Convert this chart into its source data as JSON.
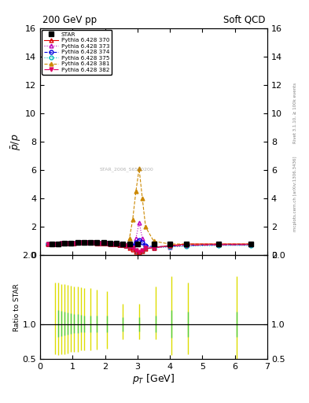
{
  "title_left": "200 GeV pp",
  "title_right": "Soft QCD",
  "ylabel_main": "$\\bar{p}/p$",
  "ylabel_ratio": "Ratio to STAR",
  "xlabel": "$p_T$ [GeV]",
  "right_label_top": "Rivet 3.1.10, ≥ 100k events",
  "right_label_bottom": "mcplots.cern.ch [arXiv:1306.3436]",
  "watermark": "STAR_2006_S6500200",
  "ylim_main": [
    0,
    16
  ],
  "ylim_ratio": [
    0.5,
    2
  ],
  "xlim": [
    0,
    7
  ],
  "star_x": [
    0.35,
    0.55,
    0.75,
    0.95,
    1.15,
    1.35,
    1.55,
    1.75,
    1.95,
    2.15,
    2.35,
    2.55,
    2.75,
    3.0,
    3.5,
    4.0,
    4.5,
    5.5,
    6.5
  ],
  "star_y": [
    0.78,
    0.8,
    0.84,
    0.87,
    0.89,
    0.91,
    0.92,
    0.91,
    0.9,
    0.88,
    0.86,
    0.83,
    0.8,
    0.8,
    0.8,
    0.8,
    0.8,
    0.82,
    0.82
  ],
  "pythia_x": [
    0.25,
    0.35,
    0.45,
    0.55,
    0.65,
    0.75,
    0.85,
    0.95,
    1.05,
    1.15,
    1.25,
    1.35,
    1.45,
    1.55,
    1.65,
    1.75,
    1.85,
    1.95,
    2.05,
    2.15,
    2.25,
    2.35,
    2.45,
    2.55,
    2.65,
    2.75,
    2.85,
    2.95,
    3.05,
    3.15,
    3.25,
    3.5,
    4.0,
    4.5,
    5.5,
    6.5
  ],
  "py370_y": [
    0.79,
    0.8,
    0.81,
    0.82,
    0.84,
    0.85,
    0.86,
    0.87,
    0.88,
    0.89,
    0.89,
    0.9,
    0.9,
    0.9,
    0.89,
    0.88,
    0.87,
    0.86,
    0.84,
    0.82,
    0.8,
    0.78,
    0.75,
    0.72,
    0.68,
    0.55,
    0.4,
    0.25,
    0.18,
    0.3,
    0.45,
    0.55,
    0.7,
    0.8,
    0.8,
    0.8
  ],
  "py373_y": [
    0.79,
    0.8,
    0.81,
    0.82,
    0.84,
    0.85,
    0.86,
    0.87,
    0.88,
    0.89,
    0.89,
    0.9,
    0.9,
    0.9,
    0.89,
    0.88,
    0.87,
    0.86,
    0.84,
    0.82,
    0.8,
    0.78,
    0.75,
    0.72,
    0.68,
    0.65,
    0.7,
    1.2,
    2.3,
    1.2,
    0.65,
    0.55,
    0.6,
    0.7,
    0.75,
    0.75
  ],
  "py374_y": [
    0.79,
    0.8,
    0.81,
    0.82,
    0.84,
    0.85,
    0.86,
    0.87,
    0.88,
    0.89,
    0.89,
    0.9,
    0.9,
    0.9,
    0.89,
    0.88,
    0.87,
    0.86,
    0.84,
    0.82,
    0.8,
    0.78,
    0.75,
    0.72,
    0.68,
    0.65,
    0.7,
    0.9,
    1.1,
    0.9,
    0.7,
    0.6,
    0.65,
    0.7,
    0.75,
    0.75
  ],
  "py375_y": [
    0.79,
    0.8,
    0.81,
    0.82,
    0.84,
    0.85,
    0.86,
    0.87,
    0.88,
    0.89,
    0.89,
    0.9,
    0.9,
    0.9,
    0.89,
    0.88,
    0.87,
    0.86,
    0.84,
    0.82,
    0.8,
    0.78,
    0.75,
    0.72,
    0.68,
    0.6,
    0.5,
    0.3,
    0.2,
    0.3,
    0.5,
    0.55,
    0.6,
    0.65,
    0.7,
    0.7
  ],
  "py381_y": [
    0.79,
    0.8,
    0.81,
    0.82,
    0.84,
    0.85,
    0.86,
    0.87,
    0.88,
    0.89,
    0.89,
    0.9,
    0.9,
    0.9,
    0.89,
    0.88,
    0.87,
    0.86,
    0.84,
    0.82,
    0.8,
    0.78,
    0.75,
    0.72,
    0.68,
    1.2,
    2.5,
    4.5,
    6.1,
    4.0,
    2.0,
    1.0,
    0.8,
    0.8,
    0.8,
    0.8
  ],
  "py382_y": [
    0.79,
    0.8,
    0.81,
    0.82,
    0.84,
    0.85,
    0.86,
    0.87,
    0.88,
    0.89,
    0.89,
    0.9,
    0.9,
    0.9,
    0.89,
    0.88,
    0.87,
    0.86,
    0.84,
    0.82,
    0.8,
    0.78,
    0.75,
    0.72,
    0.68,
    0.6,
    0.5,
    0.35,
    0.25,
    0.35,
    0.5,
    0.55,
    0.65,
    0.7,
    0.75,
    0.75
  ],
  "colors": {
    "370": "#dd0000",
    "373": "#bb00bb",
    "374": "#0000dd",
    "375": "#00bbbb",
    "381": "#cc8800",
    "382": "#dd0066"
  },
  "ratio_yellow_x": [
    0.45,
    0.55,
    0.65,
    0.75,
    0.85,
    0.95,
    1.05,
    1.15,
    1.25,
    1.35,
    1.55,
    1.75,
    2.05,
    2.55,
    3.05,
    3.55,
    4.05,
    4.55,
    6.05
  ],
  "ratio_yellow_lo": [
    0.56,
    0.55,
    0.56,
    0.57,
    0.58,
    0.6,
    0.6,
    0.6,
    0.62,
    0.62,
    0.62,
    0.63,
    0.65,
    0.78,
    0.78,
    0.78,
    0.55,
    0.56,
    0.5
  ],
  "ratio_yellow_hi": [
    1.6,
    1.6,
    1.58,
    1.58,
    1.57,
    1.56,
    1.55,
    1.55,
    1.54,
    1.53,
    1.52,
    1.5,
    1.48,
    1.3,
    1.3,
    1.55,
    1.7,
    1.6,
    1.7
  ],
  "ratio_green_x": [
    0.55,
    0.65,
    0.75,
    0.85,
    0.95,
    1.05,
    1.15,
    1.25,
    1.35,
    1.55,
    1.75,
    2.05,
    2.55,
    3.05,
    3.55,
    4.05,
    4.55,
    6.05
  ],
  "ratio_green_lo": [
    0.82,
    0.83,
    0.84,
    0.85,
    0.86,
    0.87,
    0.87,
    0.88,
    0.88,
    0.88,
    0.88,
    0.88,
    0.9,
    0.9,
    0.88,
    0.8,
    0.82,
    0.82
  ],
  "ratio_green_hi": [
    1.2,
    1.19,
    1.18,
    1.17,
    1.16,
    1.15,
    1.15,
    1.14,
    1.13,
    1.13,
    1.13,
    1.12,
    1.1,
    1.1,
    1.12,
    1.2,
    1.18,
    1.18
  ]
}
